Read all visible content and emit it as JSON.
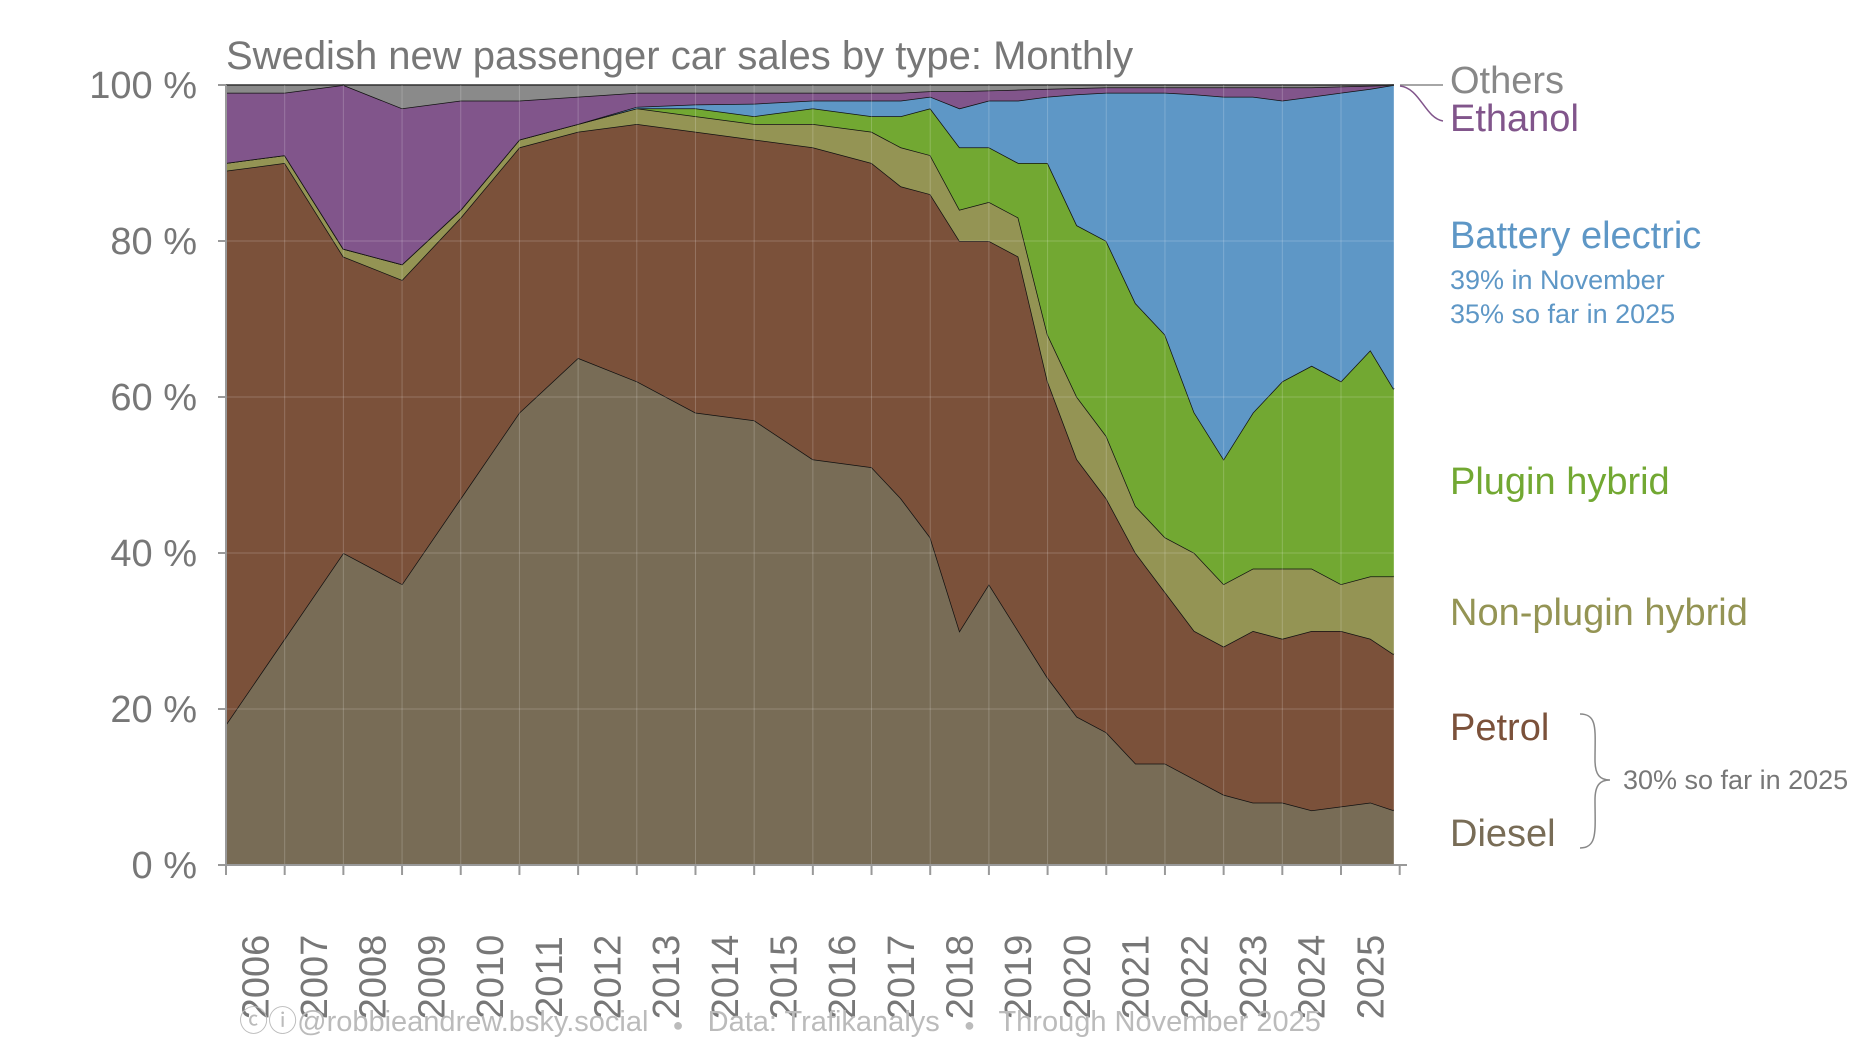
{
  "chart_data": {
    "type": "area",
    "stacked": true,
    "title": "Swedish new passenger car sales by type: Monthly",
    "xlabel": "",
    "ylabel": "",
    "ylim": [
      0,
      100
    ],
    "xlim": [
      2006,
      2025.92
    ],
    "y_ticks": [
      "0 %",
      "20 %",
      "40 %",
      "60 %",
      "80 %",
      "100 %"
    ],
    "x_ticks": [
      "2006",
      "2007",
      "2008",
      "2009",
      "2010",
      "2011",
      "2012",
      "2013",
      "2014",
      "2015",
      "2016",
      "2017",
      "2018",
      "2019",
      "2020",
      "2021",
      "2022",
      "2023",
      "2024",
      "2025"
    ],
    "grid": true,
    "x": [
      2006,
      2007,
      2008,
      2009,
      2010,
      2011,
      2012,
      2013,
      2014,
      2015,
      2016,
      2017,
      2017.5,
      2018,
      2018.5,
      2019,
      2019.5,
      2020,
      2020.5,
      2021,
      2021.5,
      2022,
      2022.5,
      2023,
      2023.5,
      2024,
      2024.5,
      2025,
      2025.5,
      2025.9
    ],
    "series": [
      {
        "name": "Diesel",
        "color": "#786c56",
        "values": [
          18,
          29,
          40,
          36,
          47,
          58,
          65,
          62,
          58,
          57,
          52,
          51,
          47,
          42,
          30,
          36,
          30,
          24,
          19,
          17,
          13,
          13,
          11,
          9,
          8,
          8,
          7,
          7.5,
          8,
          7
        ]
      },
      {
        "name": "Petrol",
        "color": "#7b513a",
        "values": [
          71,
          61,
          38,
          39,
          36,
          34,
          29,
          33,
          36,
          36,
          40,
          39,
          40,
          44,
          50,
          44,
          48,
          38,
          33,
          30,
          27,
          22,
          19,
          19,
          22,
          21,
          23,
          22.5,
          21,
          20
        ]
      },
      {
        "name": "Non-plugin hybrid",
        "color": "#949454",
        "values": [
          1,
          1,
          1,
          2,
          1,
          1,
          1,
          2,
          2,
          2,
          3,
          4,
          5,
          5,
          4,
          5,
          5,
          6,
          8,
          8,
          6,
          7,
          10,
          8,
          8,
          9,
          8,
          6,
          8,
          10
        ]
      },
      {
        "name": "Plugin hybrid",
        "color": "#72a832",
        "values": [
          0,
          0,
          0,
          0,
          0,
          0,
          0,
          0,
          1,
          1,
          2,
          2,
          4,
          6,
          8,
          7,
          7,
          22,
          22,
          25,
          26,
          26,
          18,
          16,
          20,
          24,
          26,
          26,
          29,
          24
        ]
      },
      {
        "name": "Battery electric",
        "color": "#5e97c6",
        "values": [
          0,
          0,
          0,
          0,
          0,
          0,
          0,
          0.2,
          0.5,
          1.6,
          1,
          2,
          2,
          1.5,
          5,
          6,
          8,
          8.5,
          16.8,
          19,
          27,
          31,
          40.8,
          46.5,
          40.5,
          36,
          34.5,
          37,
          33.5,
          39
        ]
      },
      {
        "name": "Ethanol",
        "color": "#81558b",
        "values": [
          9,
          8,
          21,
          20,
          14,
          5,
          3.5,
          1.8,
          1.5,
          1.4,
          1,
          1,
          1,
          0.7,
          2.2,
          1.3,
          1.4,
          1,
          0.8,
          0.7,
          0.7,
          0.7,
          0.9,
          1.2,
          1.2,
          1.7,
          1.2,
          0.8,
          0.4,
          0
        ]
      },
      {
        "name": "Others",
        "color": "#8a8a8a",
        "values": [
          1,
          1,
          0,
          3,
          2,
          2,
          1.5,
          1,
          1,
          1,
          1,
          1,
          1,
          0.8,
          0.8,
          0.7,
          0.6,
          0.5,
          0.4,
          0.3,
          0.3,
          0.3,
          0.3,
          0.3,
          0.3,
          0.3,
          0.3,
          0.2,
          0.1,
          0
        ]
      }
    ],
    "annotations": {
      "others": "Others",
      "ethanol": "Ethanol",
      "bev": "Battery electric",
      "bev_nov": "39% in November",
      "bev_ytd": "35% so far in 2025",
      "phev": "Plugin hybrid",
      "nph": "Non-plugin hybrid",
      "petrol": "Petrol",
      "diesel": "Diesel",
      "fossil_ytd": "30% so far in 2025"
    }
  },
  "footer": {
    "credit": "@robbieandrew.bsky.social",
    "source": "Data: Trafikanalys",
    "through": "Through November 2025",
    "separator": "●"
  }
}
